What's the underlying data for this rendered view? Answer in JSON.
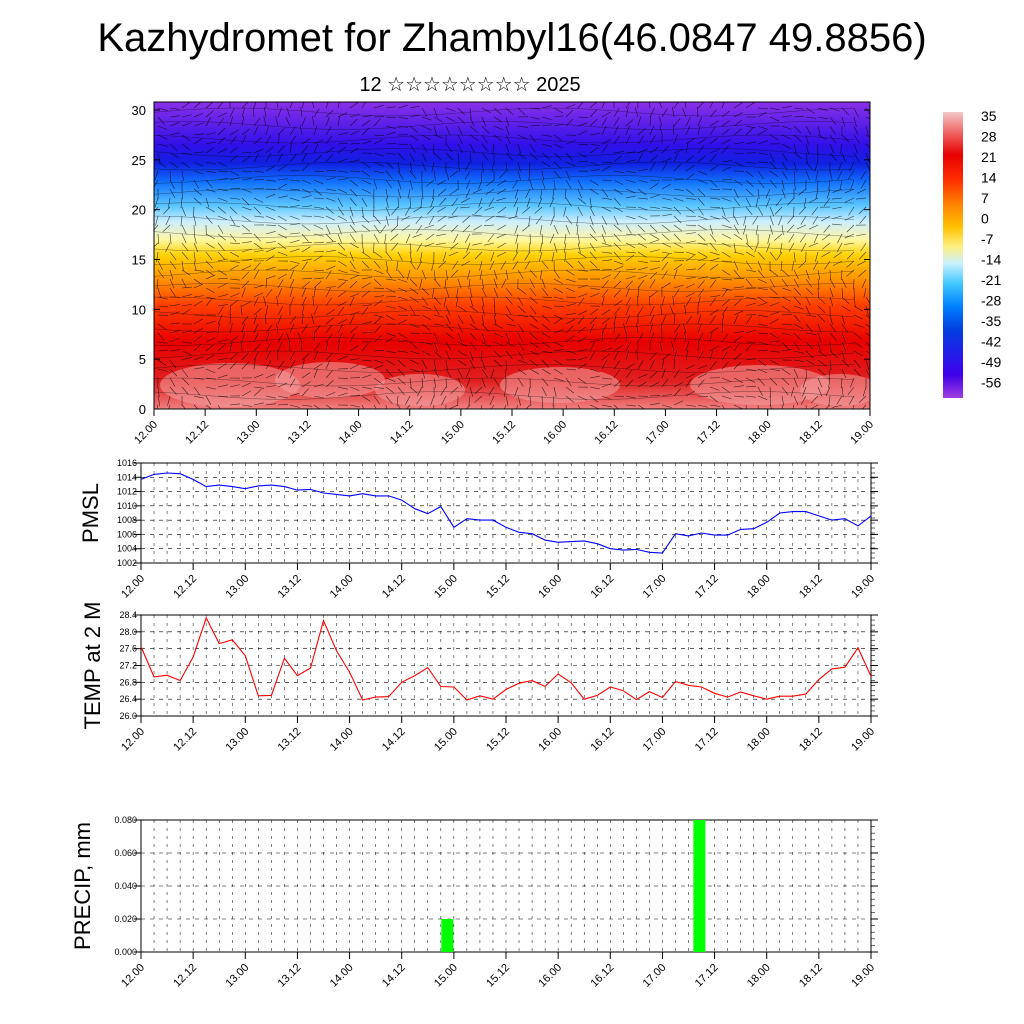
{
  "header": {
    "title": "Kazhydromet for Zhambyl16(46.0847 49.8856)",
    "subtitle": "12 ☆☆☆☆☆☆☆☆ 2025"
  },
  "chart_data": [
    {
      "type": "heatmap",
      "name": "cross-section",
      "title": "",
      "xlabel": "",
      "ylabel": "",
      "x_ticks": [
        "12.00",
        "12.12",
        "13.00",
        "13.12",
        "14.00",
        "14.12",
        "15.00",
        "15.12",
        "16.00",
        "16.12",
        "17.00",
        "17.12",
        "18.00",
        "18.12",
        "19.00"
      ],
      "y_ticks": [
        0,
        5,
        10,
        15,
        20,
        25,
        30
      ],
      "ylim": [
        0,
        30.8
      ],
      "vectors": "wind barbs overlaid",
      "colorbar": {
        "labels": [
          "35",
          "28",
          "21",
          "14",
          "7",
          "0",
          "-7",
          "-14",
          "-21",
          "-28",
          "-35",
          "-42",
          "-49",
          "-56"
        ],
        "palette": [
          "#f4c8c8",
          "#ee5a5a",
          "#e80000",
          "#ff3000",
          "#ff8000",
          "#ffc000",
          "#fff080",
          "#c8f0ff",
          "#40c8ff",
          "#0080ff",
          "#0040e0",
          "#2020e8",
          "#4000e8",
          "#a040e0"
        ]
      }
    },
    {
      "type": "line",
      "name": "pmsl",
      "title": "",
      "xlabel": "",
      "ylabel": "PMSL",
      "color": "#0000ff",
      "ylim": [
        1002,
        1016
      ],
      "y_ticks": [
        1002,
        1004,
        1006,
        1008,
        1010,
        1012,
        1014,
        1016
      ],
      "x_ticks": [
        "12.00",
        "12.12",
        "13.00",
        "13.12",
        "14.00",
        "14.12",
        "15.00",
        "15.12",
        "16.00",
        "16.12",
        "17.00",
        "17.12",
        "18.00",
        "18.12",
        "19.00"
      ],
      "x": [
        0,
        3,
        6,
        9,
        12,
        15,
        18,
        21,
        24,
        27,
        30,
        33,
        36,
        39,
        42,
        45,
        48,
        51,
        54,
        57,
        60,
        63,
        66,
        69,
        72,
        75,
        78,
        81,
        84,
        87,
        90,
        93,
        96,
        99,
        102,
        105,
        108,
        111,
        114,
        117,
        120,
        123,
        126,
        129,
        132,
        135,
        138,
        141,
        144,
        147,
        150,
        153,
        156,
        159,
        162,
        165,
        168
      ],
      "values": [
        1013.7,
        1014.4,
        1014.6,
        1014.5,
        1013.7,
        1012.7,
        1012.9,
        1012.7,
        1012.4,
        1012.8,
        1012.9,
        1012.7,
        1012.2,
        1012.3,
        1011.8,
        1011.6,
        1011.4,
        1011.7,
        1011.4,
        1011.4,
        1010.8,
        1009.6,
        1008.9,
        1009.9,
        1007.0,
        1008.2,
        1008.0,
        1008.0,
        1007.0,
        1006.3,
        1006.1,
        1005.2,
        1004.9,
        1005.0,
        1005.1,
        1004.7,
        1004.0,
        1003.8,
        1003.9,
        1003.5,
        1003.4,
        1006.1,
        1005.8,
        1006.2,
        1005.9,
        1005.9,
        1006.7,
        1006.8,
        1007.7,
        1009.0,
        1009.2,
        1009.2,
        1008.6,
        1008.0,
        1008.2,
        1007.2,
        1008.6
      ]
    },
    {
      "type": "line",
      "name": "temp",
      "title": "",
      "xlabel": "",
      "ylabel": "TEMP at 2 M",
      "color": "#ff0000",
      "ylim": [
        26.0,
        28.4
      ],
      "y_ticks": [
        "26.0",
        "26.4",
        "26.8",
        "27.2",
        "27.6",
        "28.0",
        "28.4"
      ],
      "x_ticks": [
        "12.00",
        "12.12",
        "13.00",
        "13.12",
        "14.00",
        "14.12",
        "15.00",
        "15.12",
        "16.00",
        "16.12",
        "17.00",
        "17.12",
        "18.00",
        "18.12",
        "19.00"
      ],
      "x": [
        0,
        3,
        6,
        9,
        12,
        15,
        18,
        21,
        24,
        27,
        30,
        33,
        36,
        39,
        42,
        45,
        48,
        51,
        54,
        57,
        60,
        63,
        66,
        69,
        72,
        75,
        78,
        81,
        84,
        87,
        90,
        93,
        96,
        99,
        102,
        105,
        108,
        111,
        114,
        117,
        120,
        123,
        126,
        129,
        132,
        135,
        138,
        141,
        144,
        147,
        150,
        153,
        156,
        159,
        162,
        165,
        168
      ],
      "values": [
        27.65,
        26.93,
        26.97,
        26.84,
        27.4,
        28.33,
        27.72,
        27.81,
        27.43,
        26.48,
        26.49,
        27.37,
        26.96,
        27.14,
        28.27,
        27.55,
        27.04,
        26.38,
        26.45,
        26.46,
        26.8,
        26.96,
        27.15,
        26.7,
        26.69,
        26.38,
        26.48,
        26.4,
        26.63,
        26.78,
        26.84,
        26.7,
        27.0,
        26.79,
        26.4,
        26.49,
        26.69,
        26.6,
        26.39,
        26.58,
        26.44,
        26.82,
        26.73,
        26.69,
        26.54,
        26.45,
        26.57,
        26.48,
        26.4,
        26.47,
        26.47,
        26.52,
        26.87,
        27.12,
        27.16,
        27.62,
        26.94
      ]
    },
    {
      "type": "bar",
      "name": "precip",
      "title": "",
      "xlabel": "",
      "ylabel": "PRECIP, mm",
      "color": "#00ff00",
      "ylim": [
        0,
        0.08
      ],
      "y_ticks": [
        "0.000",
        "0.020",
        "0.040",
        "0.060",
        "0.080"
      ],
      "x_ticks": [
        "12.00",
        "12.12",
        "13.00",
        "13.12",
        "14.00",
        "14.12",
        "15.00",
        "15.12",
        "16.00",
        "16.12",
        "17.00",
        "17.12",
        "18.00",
        "18.12",
        "19.00"
      ],
      "x": [
        70.5,
        128.5
      ],
      "values": [
        0.02,
        0.08
      ]
    }
  ]
}
